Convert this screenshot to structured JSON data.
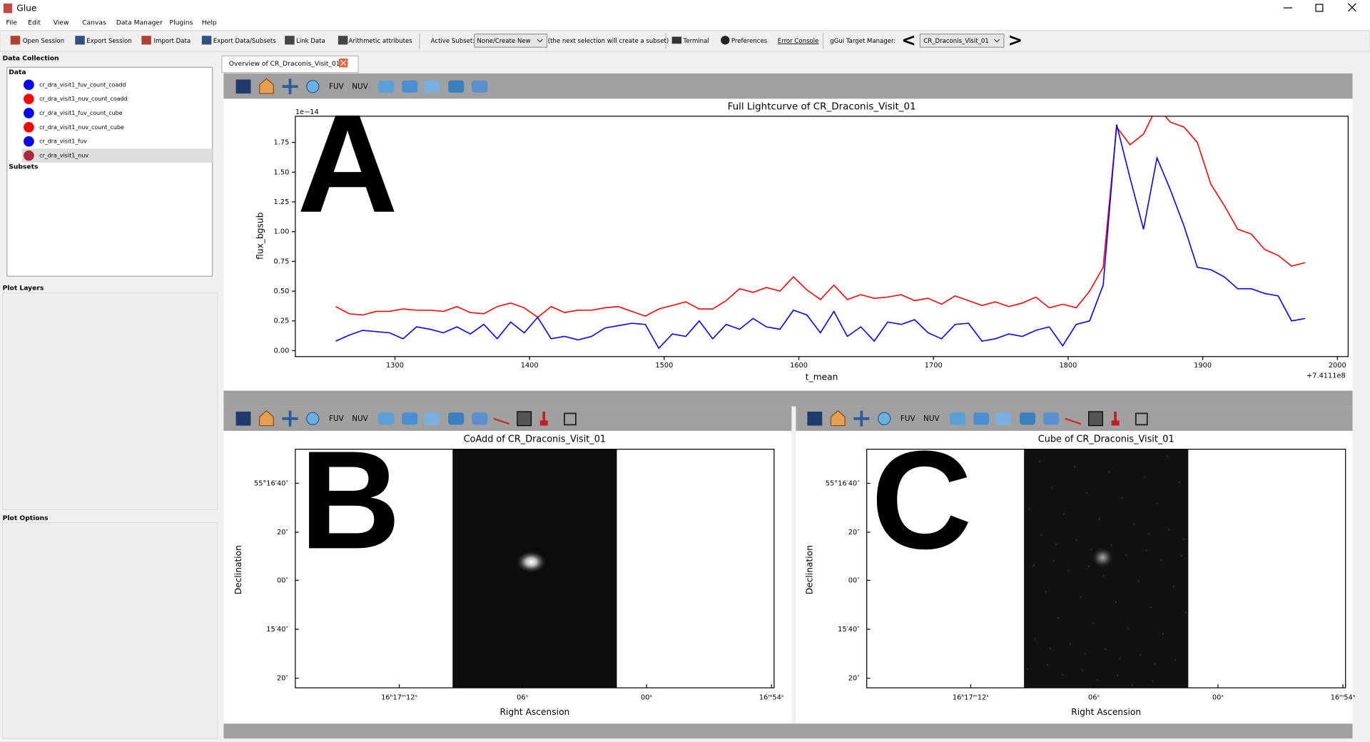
{
  "window": {
    "title": "Glue"
  },
  "menu": [
    "File",
    "Edit",
    "View",
    "Canvas",
    "Data Manager",
    "Plugins",
    "Help"
  ],
  "toolbar": {
    "buttons": [
      "Open Session",
      "Export Session",
      "Import Data",
      "Export Data/Subsets",
      "Link Data",
      "Arithmetic attributes"
    ],
    "active_subset_label": "Active Subset:",
    "active_subset_value": "None/Create New",
    "subset_hint": "(the next selection will create a subset)",
    "terminal": "Terminal",
    "preferences": "Preferences",
    "error_console": "Error Console",
    "target_manager_label": "gGui Target Manager:",
    "target_value": "CR_Draconis_Visit_01",
    "prev": "<",
    "next": ">"
  },
  "sidebar": {
    "data_collection": "Data Collection",
    "data_header": "Data",
    "datasets": [
      {
        "name": "cr_dra_visit1_fuv_count_coadd",
        "color": "#0000ff"
      },
      {
        "name": "cr_dra_visit1_nuv_count_coadd",
        "color": "#ff0000"
      },
      {
        "name": "cr_dra_visit1_fuv_count_cube",
        "color": "#0000ff"
      },
      {
        "name": "cr_dra_visit1_nuv_count_cube",
        "color": "#ff0000"
      },
      {
        "name": "cr_dra_visit1_fuv",
        "color": "#0000ff"
      },
      {
        "name": "cr_dra_visit1_nuv",
        "color": "#b0273a"
      }
    ],
    "subsets": "Subsets",
    "plot_layers": "Plot Layers",
    "plot_options": "Plot Options"
  },
  "tab": "Overview of CR_Draconis_Visit_01",
  "viewer_tool_labels": [
    "FUV",
    "NUV"
  ],
  "chart_data": {
    "type": "line",
    "title": "Full Lightcurve of CR_Draconis_Visit_01",
    "xlabel": "t_mean",
    "ylabel": "flux_bgsub",
    "y_offset_label": "1e−14",
    "x_offset_label": "+7.4111e8",
    "x": [
      1256,
      1266,
      1276,
      1286,
      1296,
      1306,
      1316,
      1326,
      1336,
      1346,
      1356,
      1366,
      1376,
      1386,
      1396,
      1406,
      1416,
      1426,
      1436,
      1446,
      1456,
      1466,
      1476,
      1486,
      1496,
      1506,
      1516,
      1526,
      1536,
      1546,
      1556,
      1566,
      1576,
      1586,
      1596,
      1606,
      1616,
      1626,
      1636,
      1646,
      1656,
      1666,
      1676,
      1686,
      1696,
      1706,
      1716,
      1726,
      1736,
      1746,
      1756,
      1766,
      1776,
      1786,
      1796,
      1806,
      1816,
      1826,
      1836,
      1846,
      1856,
      1866,
      1876,
      1886,
      1896,
      1906,
      1916,
      1926,
      1936,
      1946,
      1956,
      1966,
      1976
    ],
    "series": [
      {
        "name": "cr_dra_visit1_nuv",
        "color": "#ff0000",
        "values": [
          0.37,
          0.31,
          0.3,
          0.33,
          0.33,
          0.35,
          0.34,
          0.34,
          0.33,
          0.37,
          0.32,
          0.31,
          0.37,
          0.4,
          0.36,
          0.28,
          0.37,
          0.32,
          0.34,
          0.34,
          0.36,
          0.37,
          0.33,
          0.29,
          0.35,
          0.38,
          0.41,
          0.35,
          0.35,
          0.42,
          0.52,
          0.49,
          0.53,
          0.5,
          0.62,
          0.51,
          0.43,
          0.55,
          0.43,
          0.47,
          0.44,
          0.45,
          0.47,
          0.42,
          0.44,
          0.39,
          0.46,
          0.42,
          0.38,
          0.41,
          0.37,
          0.4,
          0.45,
          0.36,
          0.39,
          0.36,
          0.5,
          0.7,
          1.88,
          1.73,
          1.82,
          2.05,
          1.92,
          1.88,
          1.75,
          1.4,
          1.22,
          1.02,
          0.98,
          0.85,
          0.8,
          0.71,
          0.74
        ]
      },
      {
        "name": "cr_dra_visit1_fuv",
        "color": "#0000ff",
        "values": [
          0.08,
          0.13,
          0.17,
          0.16,
          0.15,
          0.1,
          0.2,
          0.18,
          0.15,
          0.2,
          0.14,
          0.22,
          0.1,
          0.24,
          0.15,
          0.28,
          0.1,
          0.12,
          0.09,
          0.12,
          0.19,
          0.21,
          0.23,
          0.22,
          0.02,
          0.14,
          0.12,
          0.25,
          0.1,
          0.22,
          0.18,
          0.27,
          0.2,
          0.18,
          0.34,
          0.3,
          0.15,
          0.33,
          0.12,
          0.2,
          0.08,
          0.24,
          0.22,
          0.26,
          0.15,
          0.1,
          0.22,
          0.23,
          0.08,
          0.1,
          0.14,
          0.12,
          0.17,
          0.2,
          0.04,
          0.22,
          0.25,
          0.55,
          1.9,
          1.45,
          1.02,
          1.62,
          1.35,
          1.05,
          0.7,
          0.68,
          0.62,
          0.52,
          0.52,
          0.48,
          0.46,
          0.25,
          0.27
        ]
      }
    ],
    "xlim": [
      1226,
      2008
    ],
    "ylim": [
      -0.05,
      1.97
    ],
    "xticks": [
      1300,
      1400,
      1500,
      1600,
      1700,
      1800,
      1900,
      2000
    ],
    "yticks": [
      {
        "value": 0,
        "label": "0.00"
      },
      {
        "value": 0.25,
        "label": "0.25"
      },
      {
        "value": 0.5,
        "label": "0.50"
      },
      {
        "value": 0.75,
        "label": "0.75"
      },
      {
        "value": 1,
        "label": "1.00"
      },
      {
        "value": 1.25,
        "label": "1.25"
      },
      {
        "value": 1.5,
        "label": "1.50"
      },
      {
        "value": 1.75,
        "label": "1.75"
      }
    ]
  },
  "image_viewers": [
    {
      "title": "CoAdd of CR_Draconis_Visit_01",
      "xlabel": "Right Ascension",
      "ylabel": "Declination",
      "xtick_labels": [
        "16ʰ17ᵐ12ˢ",
        "06ˢ",
        "00ˢ",
        "16ᵐ54ˢ"
      ],
      "ytick_labels": [
        "55°16′40″",
        "20″",
        "00″",
        "15′40″",
        "20″"
      ]
    },
    {
      "title": "Cube of CR_Draconis_Visit_01",
      "xlabel": "Right Ascension",
      "ylabel": "Declination",
      "xtick_labels": [
        "16ʰ17ᵐ12ˢ",
        "06ˢ",
        "00ˢ",
        "16ᵐ54ˢ"
      ],
      "ytick_labels": [
        "55°16′40″",
        "20″",
        "00″",
        "15′40″",
        "20″"
      ]
    }
  ],
  "annotations": [
    "A",
    "B",
    "C"
  ]
}
